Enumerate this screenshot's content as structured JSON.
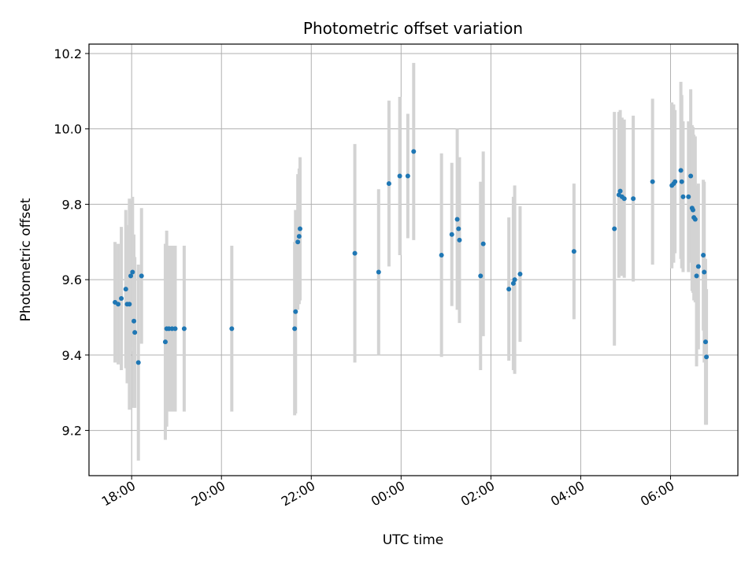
{
  "chart_data": {
    "type": "scatter",
    "title": "Photometric offset variation",
    "xlabel": "UTC time",
    "ylabel": "Photometric offset",
    "grid": true,
    "legend": "none",
    "x_unit": "hours (relative to 00:00 UTC)",
    "xlim": [
      -6.95,
      7.5
    ],
    "ylim": [
      9.08,
      10.225
    ],
    "x_ticks": [
      -6,
      -4,
      -2,
      0,
      2,
      4,
      6
    ],
    "x_tick_labels": [
      "18:00",
      "20:00",
      "22:00",
      "00:00",
      "02:00",
      "04:00",
      "06:00"
    ],
    "y_ticks": [
      9.2,
      9.4,
      9.6,
      9.8,
      10.0,
      10.2
    ],
    "y_tick_labels": [
      "9.2",
      "9.4",
      "9.6",
      "9.8",
      "10.0",
      "10.2"
    ],
    "colors": {
      "point": "#1f77b4",
      "errorbar": "#d3d3d3",
      "grid": "#b0b0b0"
    },
    "points": [
      {
        "x": -6.37,
        "y": 9.54,
        "err": 0.16
      },
      {
        "x": -6.3,
        "y": 9.535,
        "err": 0.16
      },
      {
        "x": -6.23,
        "y": 9.55,
        "err": 0.19
      },
      {
        "x": -6.13,
        "y": 9.575,
        "err": 0.21
      },
      {
        "x": -6.1,
        "y": 9.535,
        "err": 0.21
      },
      {
        "x": -6.05,
        "y": 9.535,
        "err": 0.28
      },
      {
        "x": -6.02,
        "y": 9.61,
        "err": 0.2
      },
      {
        "x": -5.98,
        "y": 9.62,
        "err": 0.2
      },
      {
        "x": -5.95,
        "y": 9.49,
        "err": 0.23
      },
      {
        "x": -5.93,
        "y": 9.46,
        "err": 0.2
      },
      {
        "x": -5.85,
        "y": 9.38,
        "err": 0.26
      },
      {
        "x": -5.78,
        "y": 9.61,
        "err": 0.18
      },
      {
        "x": -5.25,
        "y": 9.435,
        "err": 0.26
      },
      {
        "x": -5.22,
        "y": 9.47,
        "err": 0.26
      },
      {
        "x": -5.17,
        "y": 9.47,
        "err": 0.22
      },
      {
        "x": -5.1,
        "y": 9.47,
        "err": 0.22
      },
      {
        "x": -5.03,
        "y": 9.47,
        "err": 0.22
      },
      {
        "x": -4.83,
        "y": 9.47,
        "err": 0.22
      },
      {
        "x": -3.77,
        "y": 9.47,
        "err": 0.22
      },
      {
        "x": -2.37,
        "y": 9.47,
        "err": 0.23
      },
      {
        "x": -2.35,
        "y": 9.515,
        "err": 0.27
      },
      {
        "x": -2.3,
        "y": 9.7,
        "err": 0.18
      },
      {
        "x": -2.27,
        "y": 9.715,
        "err": 0.18
      },
      {
        "x": -2.25,
        "y": 9.735,
        "err": 0.19
      },
      {
        "x": -1.03,
        "y": 9.67,
        "err": 0.29
      },
      {
        "x": -0.5,
        "y": 9.62,
        "err": 0.22
      },
      {
        "x": -0.27,
        "y": 9.855,
        "err": 0.22
      },
      {
        "x": -0.03,
        "y": 9.875,
        "err": 0.21
      },
      {
        "x": 0.15,
        "y": 9.875,
        "err": 0.165
      },
      {
        "x": 0.28,
        "y": 9.94,
        "err": 0.235
      },
      {
        "x": 0.9,
        "y": 9.665,
        "err": 0.27
      },
      {
        "x": 1.13,
        "y": 9.72,
        "err": 0.19
      },
      {
        "x": 1.25,
        "y": 9.76,
        "err": 0.24
      },
      {
        "x": 1.28,
        "y": 9.735,
        "err": 0.16
      },
      {
        "x": 1.3,
        "y": 9.705,
        "err": 0.22
      },
      {
        "x": 1.77,
        "y": 9.61,
        "err": 0.25
      },
      {
        "x": 1.83,
        "y": 9.695,
        "err": 0.245
      },
      {
        "x": 2.4,
        "y": 9.575,
        "err": 0.19
      },
      {
        "x": 2.5,
        "y": 9.59,
        "err": 0.23
      },
      {
        "x": 2.53,
        "y": 9.6,
        "err": 0.25
      },
      {
        "x": 2.65,
        "y": 9.615,
        "err": 0.18
      },
      {
        "x": 3.85,
        "y": 9.675,
        "err": 0.18
      },
      {
        "x": 4.75,
        "y": 9.735,
        "err": 0.31
      },
      {
        "x": 4.85,
        "y": 9.825,
        "err": 0.22
      },
      {
        "x": 4.88,
        "y": 9.835,
        "err": 0.215
      },
      {
        "x": 4.92,
        "y": 9.82,
        "err": 0.21
      },
      {
        "x": 4.97,
        "y": 9.815,
        "err": 0.21
      },
      {
        "x": 5.17,
        "y": 9.815,
        "err": 0.22
      },
      {
        "x": 5.6,
        "y": 9.86,
        "err": 0.22
      },
      {
        "x": 6.03,
        "y": 9.85,
        "err": 0.22
      },
      {
        "x": 6.07,
        "y": 9.855,
        "err": 0.21
      },
      {
        "x": 6.1,
        "y": 9.86,
        "err": 0.19
      },
      {
        "x": 6.23,
        "y": 9.89,
        "err": 0.235
      },
      {
        "x": 6.25,
        "y": 9.86,
        "err": 0.23
      },
      {
        "x": 6.28,
        "y": 9.82,
        "err": 0.2
      },
      {
        "x": 6.4,
        "y": 9.82,
        "err": 0.2
      },
      {
        "x": 6.45,
        "y": 9.875,
        "err": 0.23
      },
      {
        "x": 6.48,
        "y": 9.79,
        "err": 0.22
      },
      {
        "x": 6.5,
        "y": 9.785,
        "err": 0.22
      },
      {
        "x": 6.52,
        "y": 9.765,
        "err": 0.22
      },
      {
        "x": 6.55,
        "y": 9.76,
        "err": 0.22
      },
      {
        "x": 6.58,
        "y": 9.61,
        "err": 0.24
      },
      {
        "x": 6.62,
        "y": 9.635,
        "err": 0.22
      },
      {
        "x": 6.73,
        "y": 9.665,
        "err": 0.2
      },
      {
        "x": 6.75,
        "y": 9.62,
        "err": 0.24
      },
      {
        "x": 6.78,
        "y": 9.435,
        "err": 0.22
      },
      {
        "x": 6.8,
        "y": 9.395,
        "err": 0.18
      }
    ]
  }
}
